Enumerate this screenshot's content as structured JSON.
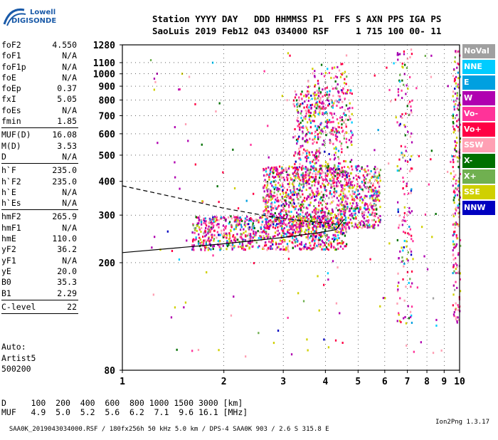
{
  "logo": {
    "line1": "Lowell",
    "line2": "DIGISONDE"
  },
  "header": {
    "line1": "Station YYYY DAY   DDD HHMMSS P1  FFS S AXN PPS IGA PS",
    "line2": "SaoLuis 2019 Feb12 043 034000 RSF     1 715 100 00- 11"
  },
  "params_groups": [
    [
      {
        "name": "foF2",
        "value": "4.550"
      },
      {
        "name": "foF1",
        "value": "N/A"
      },
      {
        "name": "foF1p",
        "value": "N/A"
      },
      {
        "name": "foE",
        "value": "N/A"
      },
      {
        "name": "foEp",
        "value": "0.37"
      },
      {
        "name": "fxI",
        "value": "5.05"
      },
      {
        "name": "foEs",
        "value": "N/A"
      },
      {
        "name": "fmin",
        "value": "1.85"
      }
    ],
    [
      {
        "name": "MUF(D)",
        "value": "16.08"
      },
      {
        "name": "M(D)",
        "value": "3.53"
      },
      {
        "name": "D",
        "value": "N/A"
      }
    ],
    [
      {
        "name": "h`F",
        "value": "235.0"
      },
      {
        "name": "h`F2",
        "value": "235.0"
      },
      {
        "name": "h`E",
        "value": "N/A"
      },
      {
        "name": "h`Es",
        "value": "N/A"
      }
    ],
    [
      {
        "name": "hmF2",
        "value": "265.9"
      },
      {
        "name": "hmF1",
        "value": "N/A"
      },
      {
        "name": "hmE",
        "value": "110.0"
      },
      {
        "name": "yF2",
        "value": "36.2"
      },
      {
        "name": "yF1",
        "value": "N/A"
      },
      {
        "name": "yE",
        "value": "20.0"
      },
      {
        "name": "B0",
        "value": "35.3"
      },
      {
        "name": "B1",
        "value": "2.29"
      }
    ],
    [
      {
        "name": "C-level",
        "value": "22"
      }
    ]
  ],
  "auto": {
    "line1": "Auto:",
    "line2": "Artist5",
    "line3": "500200"
  },
  "legend": [
    {
      "label": "NoVal",
      "color": "#a0a0a0"
    },
    {
      "label": "NNE",
      "color": "#00ccff"
    },
    {
      "label": "E",
      "color": "#00a0e0"
    },
    {
      "label": "W",
      "color": "#b000b0"
    },
    {
      "label": "Vo-",
      "color": "#ff3399"
    },
    {
      "label": "Vo+",
      "color": "#ff0044"
    },
    {
      "label": "SSW",
      "color": "#ffa0b4"
    },
    {
      "label": "X-",
      "color": "#007000"
    },
    {
      "label": "X+",
      "color": "#70b050"
    },
    {
      "label": "SSE",
      "color": "#d0d000"
    },
    {
      "label": "NNW",
      "color": "#0000c0"
    }
  ],
  "dmuf": {
    "d_line": "D     100  200  400  600  800 1000 1500 3000 [km]",
    "muf_line": "MUF   4.9  5.0  5.2  5.6  6.2  7.1  9.6 16.1 [MHz]"
  },
  "footer": {
    "text": "SAA0K_2019043034000.RSF / 180fx256h 50 kHz 5.0 km / DPS-4 SAA0K 903 / 2.6 S 315.8 E",
    "version": "Ion2Png 1.3.17"
  },
  "chart_data": {
    "type": "scatter",
    "title": "",
    "xlabel": "",
    "ylabel": "",
    "xlim": [
      1,
      10
    ],
    "ylim": [
      80,
      1280
    ],
    "x_scale": "log",
    "y_scale": "log",
    "xticks": [
      "1",
      "2",
      "3",
      "4",
      "5",
      "6",
      "7",
      "8",
      "9",
      "10"
    ],
    "yticks": [
      "80",
      "200",
      "300",
      "400",
      "500",
      "600",
      "700",
      "800",
      "900",
      "1000",
      "1100",
      "1280"
    ],
    "traces": [
      {
        "style": "solid",
        "points": [
          [
            1.0,
            218
          ],
          [
            2.0,
            235
          ],
          [
            3.0,
            248
          ],
          [
            3.8,
            258
          ],
          [
            4.3,
            265
          ],
          [
            4.55,
            290
          ]
        ]
      },
      {
        "style": "dashed",
        "points": [
          [
            1.0,
            385
          ],
          [
            1.5,
            345
          ],
          [
            2.0,
            318
          ],
          [
            2.8,
            295
          ],
          [
            3.5,
            285
          ],
          [
            4.3,
            278
          ]
        ]
      }
    ],
    "echo_regions": [
      {
        "x_range": [
          1.6,
          4.6
        ],
        "h_range": [
          225,
          300
        ],
        "density": 900
      },
      {
        "x_range": [
          2.6,
          5.8
        ],
        "h_range": [
          270,
          460
        ],
        "density": 1200
      },
      {
        "x_range": [
          3.2,
          4.8
        ],
        "h_range": [
          400,
          900
        ],
        "density": 450
      },
      {
        "x_range": [
          3.5,
          4.6
        ],
        "h_range": [
          600,
          1100
        ],
        "density": 120
      },
      {
        "x_range": [
          6.5,
          7.2
        ],
        "h_range": [
          120,
          1250
        ],
        "density": 160
      },
      {
        "x_range": [
          9.5,
          10.0
        ],
        "h_range": [
          120,
          1250
        ],
        "density": 220
      },
      {
        "x_range": [
          1.2,
          9.8
        ],
        "h_range": [
          90,
          1250
        ],
        "density": 180
      }
    ]
  }
}
